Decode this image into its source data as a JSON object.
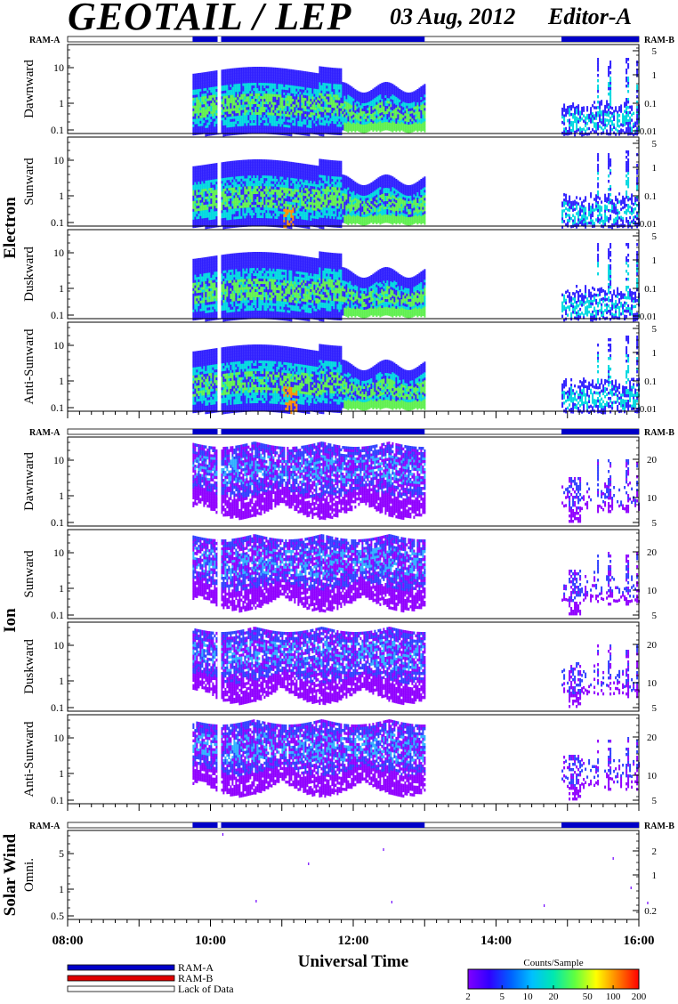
{
  "header": {
    "title": "GEOTAIL / LEP",
    "date": "03 Aug, 2012",
    "editor": "Editor-A"
  },
  "groups": [
    {
      "label": "Electron",
      "ram_left": "RAM-A",
      "ram_right": "RAM-B"
    },
    {
      "label": "Ion",
      "ram_left": "RAM-A",
      "ram_right": "RAM-B"
    },
    {
      "label": "Solar Wind",
      "ram_left": "RAM-A",
      "ram_right": "RAM-B"
    }
  ],
  "panels": [
    {
      "group": 0,
      "name": "Dawnward",
      "yticks": [
        "10",
        "1",
        "0.1"
      ],
      "rticks": [
        "5",
        "1",
        "0.1",
        "0.01"
      ]
    },
    {
      "group": 0,
      "name": "Sunward",
      "yticks": [
        "10",
        "1",
        "0.1"
      ],
      "rticks": [
        "5",
        "1",
        "0.1",
        "0.01"
      ]
    },
    {
      "group": 0,
      "name": "Duskward",
      "yticks": [
        "10",
        "1",
        "0.1"
      ],
      "rticks": [
        "5",
        "1",
        "0.1",
        "0.01"
      ]
    },
    {
      "group": 0,
      "name": "Anti-Sunward",
      "yticks": [
        "10",
        "1",
        "0.1"
      ],
      "rticks": [
        "5",
        "1",
        "0.1",
        "0.01"
      ]
    },
    {
      "group": 1,
      "name": "Dawnward",
      "yticks": [
        "10",
        "1",
        "0.1"
      ],
      "rticks": [
        "20",
        "10",
        "5"
      ]
    },
    {
      "group": 1,
      "name": "Sunward",
      "yticks": [
        "10",
        "1",
        "0.1"
      ],
      "rticks": [
        "20",
        "10",
        "5"
      ]
    },
    {
      "group": 1,
      "name": "Duskward",
      "yticks": [
        "10",
        "1",
        "0.1"
      ],
      "rticks": [
        "20",
        "10",
        "5"
      ]
    },
    {
      "group": 1,
      "name": "Anti-Sunward",
      "yticks": [
        "10",
        "1",
        "0.1"
      ],
      "rticks": [
        "20",
        "10",
        "5"
      ]
    },
    {
      "group": 2,
      "name": "Omni.",
      "yticks": [
        "5",
        "1",
        "0.5"
      ],
      "rticks": [
        "2",
        "1",
        "0.2"
      ]
    }
  ],
  "xaxis": {
    "label": "Universal Time",
    "ticks": [
      "08:00",
      "10:00",
      "12:00",
      "14:00",
      "16:00"
    ]
  },
  "legend": {
    "items": [
      {
        "label": "RAM-A",
        "color": "#0000c8"
      },
      {
        "label": "RAM-B",
        "color": "#e00000"
      },
      {
        "label": "Lack of Data",
        "color": "#ffffff"
      }
    ]
  },
  "colorbar": {
    "title": "Counts/Sample",
    "ticks": [
      "2",
      "5",
      "10",
      "20",
      "50",
      "100",
      "200"
    ],
    "values": [
      2,
      5,
      10,
      20,
      50,
      100,
      200
    ]
  },
  "chart_data": {
    "type": "heatmap",
    "x_range": [
      "08:00",
      "16:00"
    ],
    "ram_a_intervals": [
      [
        "09:45",
        "13:00"
      ],
      [
        "14:55",
        "16:00"
      ]
    ],
    "data_gaps": [
      [
        "10:06",
        "10:09"
      ]
    ],
    "data_intervals": [
      [
        "09:45",
        "13:00"
      ],
      [
        "14:55",
        "16:00"
      ]
    ],
    "colorscale": [
      "#8000ff",
      "#3000ff",
      "#0060ff",
      "#00c0ff",
      "#00e8b0",
      "#60ff40",
      "#ffff00",
      "#ff8000",
      "#ff0000"
    ],
    "electron_colors": {
      "low": "#3020ff",
      "mid": "#00d8e0",
      "high": "#60f050",
      "peak": "#ff9000"
    },
    "ion_colors": {
      "low": "#9000ff",
      "mid": "#3040ff",
      "high": "#30b0ff"
    }
  }
}
